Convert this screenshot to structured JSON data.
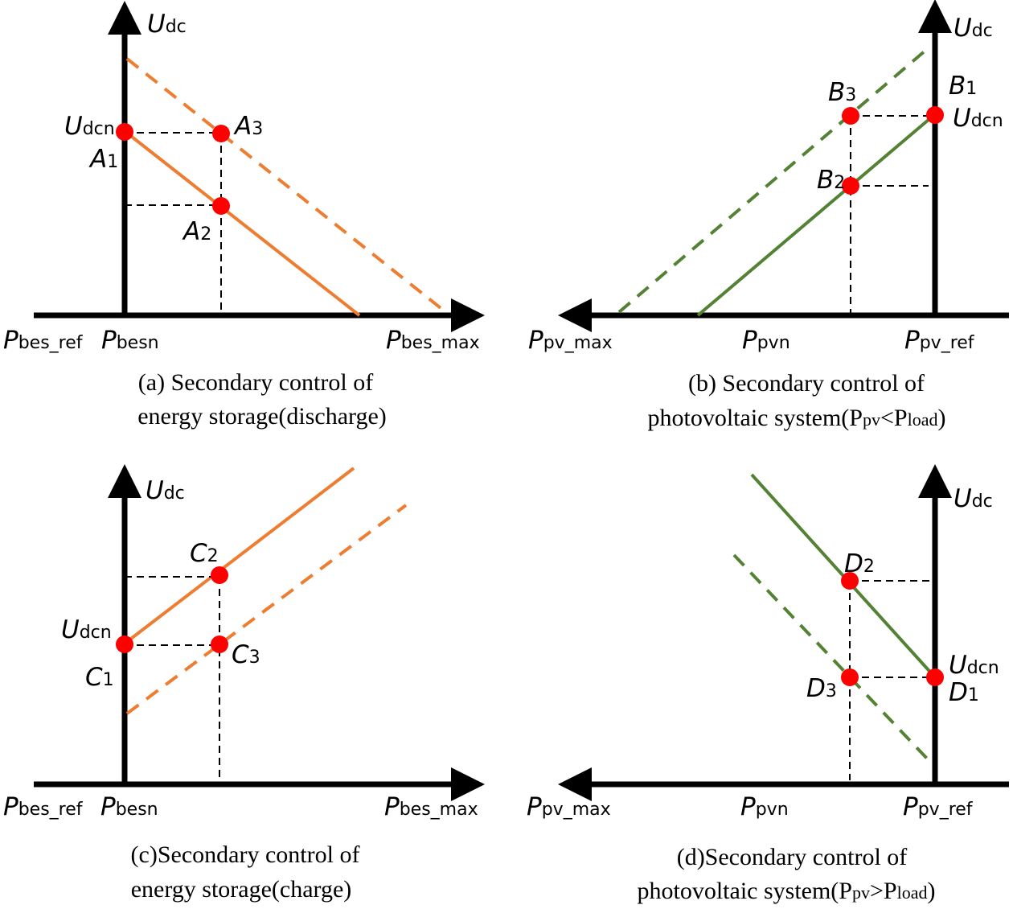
{
  "colors": {
    "storage_line": "#ed7d31",
    "pv_line": "#548235",
    "point": "#ff0000",
    "axis": "#000000"
  },
  "panel_a": {
    "y_axis": {
      "main": "U",
      "sub": "dc"
    },
    "udcn": {
      "main": "U",
      "sub": "dcn"
    },
    "points": [
      {
        "main": "A",
        "sub": "1"
      },
      {
        "main": "A",
        "sub": "2"
      },
      {
        "main": "A",
        "sub": "3"
      }
    ],
    "x_labels": [
      {
        "main": "P",
        "sub": "bes_ref"
      },
      {
        "main": "P",
        "sub": "besn"
      },
      {
        "main": "P",
        "sub": "bes_max"
      }
    ],
    "caption": [
      "(a) Secondary control of",
      "energy storage(discharge)"
    ]
  },
  "panel_b": {
    "y_axis": {
      "main": "U",
      "sub": "dc"
    },
    "udcn": {
      "main": "U",
      "sub": "dcn"
    },
    "points": [
      {
        "main": "B",
        "sub": "1"
      },
      {
        "main": "B",
        "sub": "2"
      },
      {
        "main": "B",
        "sub": "3"
      }
    ],
    "x_labels": [
      {
        "main": "P",
        "sub": "pv_max"
      },
      {
        "main": "P",
        "sub": "pvn"
      },
      {
        "main": "P",
        "sub": "pv_ref"
      }
    ],
    "caption": [
      "(b) Secondary control of",
      "photovoltaic system(P",
      "pv",
      "<P",
      "load",
      ")"
    ]
  },
  "panel_c": {
    "y_axis": {
      "main": "U",
      "sub": "dc"
    },
    "udcn": {
      "main": "U",
      "sub": "dcn"
    },
    "points": [
      {
        "main": "C",
        "sub": "1"
      },
      {
        "main": "C",
        "sub": "2"
      },
      {
        "main": "C",
        "sub": "3"
      }
    ],
    "x_labels": [
      {
        "main": "P",
        "sub": "bes_ref"
      },
      {
        "main": "P",
        "sub": "besn"
      },
      {
        "main": "P",
        "sub": "bes_max"
      }
    ],
    "caption": [
      "(c)Secondary control of",
      "energy storage(charge)"
    ]
  },
  "panel_d": {
    "y_axis": {
      "main": "U",
      "sub": "dc"
    },
    "udcn": {
      "main": "U",
      "sub": "dcn"
    },
    "points": [
      {
        "main": "D",
        "sub": "1"
      },
      {
        "main": "D",
        "sub": "2"
      },
      {
        "main": "D",
        "sub": "3"
      }
    ],
    "x_labels": [
      {
        "main": "P",
        "sub": "pv_max"
      },
      {
        "main": "P",
        "sub": "pvn"
      },
      {
        "main": "P",
        "sub": "pv_ref"
      }
    ],
    "caption": [
      "(d)Secondary control of",
      "photovoltaic system(P",
      "pv",
      ">P",
      "load",
      ")"
    ]
  }
}
